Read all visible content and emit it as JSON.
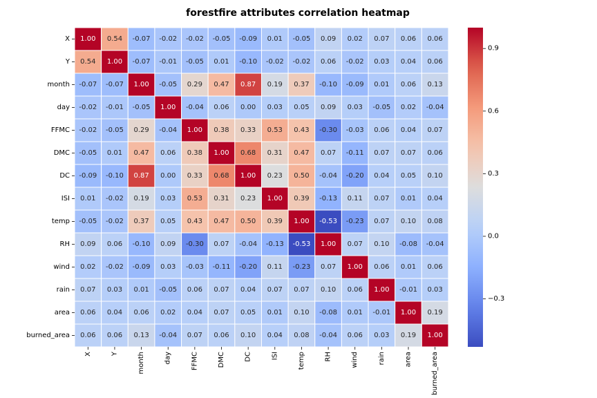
{
  "chart_data": {
    "type": "heatmap",
    "title": "forestfire attributes correlation heatmap",
    "xlabel": "",
    "ylabel": "",
    "variables": [
      "X",
      "Y",
      "month",
      "day",
      "FFMC",
      "DMC",
      "DC",
      "ISI",
      "temp",
      "RH",
      "wind",
      "rain",
      "area",
      "burned_area"
    ],
    "values": [
      [
        1.0,
        0.54,
        -0.07,
        -0.02,
        -0.02,
        -0.05,
        -0.09,
        0.01,
        -0.05,
        0.09,
        0.02,
        0.07,
        0.06,
        0.06
      ],
      [
        0.54,
        1.0,
        -0.07,
        -0.01,
        -0.05,
        0.01,
        -0.1,
        -0.02,
        -0.02,
        0.06,
        -0.02,
        0.03,
        0.04,
        0.06
      ],
      [
        -0.07,
        -0.07,
        1.0,
        -0.05,
        0.29,
        0.47,
        0.87,
        0.19,
        0.37,
        -0.1,
        -0.09,
        0.01,
        0.06,
        0.13
      ],
      [
        -0.02,
        -0.01,
        -0.05,
        1.0,
        -0.04,
        0.06,
        0.0,
        0.03,
        0.05,
        0.09,
        0.03,
        -0.05,
        0.02,
        -0.04
      ],
      [
        -0.02,
        -0.05,
        0.29,
        -0.04,
        1.0,
        0.38,
        0.33,
        0.53,
        0.43,
        -0.3,
        -0.03,
        0.06,
        0.04,
        0.07
      ],
      [
        -0.05,
        0.01,
        0.47,
        0.06,
        0.38,
        1.0,
        0.68,
        0.31,
        0.47,
        0.07,
        -0.11,
        0.07,
        0.07,
        0.06
      ],
      [
        -0.09,
        -0.1,
        0.87,
        0.0,
        0.33,
        0.68,
        1.0,
        0.23,
        0.5,
        -0.04,
        -0.2,
        0.04,
        0.05,
        0.1
      ],
      [
        0.01,
        -0.02,
        0.19,
        0.03,
        0.53,
        0.31,
        0.23,
        1.0,
        0.39,
        -0.13,
        0.11,
        0.07,
        0.01,
        0.04
      ],
      [
        -0.05,
        -0.02,
        0.37,
        0.05,
        0.43,
        0.47,
        0.5,
        0.39,
        1.0,
        -0.53,
        -0.23,
        0.07,
        0.1,
        0.08
      ],
      [
        0.09,
        0.06,
        -0.1,
        0.09,
        -0.3,
        0.07,
        -0.04,
        -0.13,
        -0.53,
        1.0,
        0.07,
        0.1,
        -0.08,
        -0.04
      ],
      [
        0.02,
        -0.02,
        -0.09,
        0.03,
        -0.03,
        -0.11,
        -0.2,
        0.11,
        -0.23,
        0.07,
        1.0,
        0.06,
        0.01,
        0.06
      ],
      [
        0.07,
        0.03,
        0.01,
        -0.05,
        0.06,
        0.07,
        0.04,
        0.07,
        0.07,
        0.1,
        0.06,
        1.0,
        -0.01,
        0.03
      ],
      [
        0.06,
        0.04,
        0.06,
        0.02,
        0.04,
        0.07,
        0.05,
        0.01,
        0.1,
        -0.08,
        0.01,
        -0.01,
        1.0,
        0.19
      ],
      [
        0.06,
        0.06,
        0.13,
        -0.04,
        0.07,
        0.06,
        0.1,
        0.04,
        0.08,
        -0.04,
        0.06,
        0.03,
        0.19,
        1.0
      ]
    ],
    "colormap": "coolwarm",
    "color_range": [
      -0.53,
      1.0
    ],
    "colorbar_ticks": [
      0.9,
      0.6,
      0.3,
      0.0,
      -0.3
    ],
    "colorbar_tick_labels": [
      "0.9",
      "0.6",
      "0.3",
      "0.0",
      "−0.3"
    ],
    "value_format": "2 decimals",
    "grid_lines": "white",
    "legend": "colorbar-right"
  }
}
